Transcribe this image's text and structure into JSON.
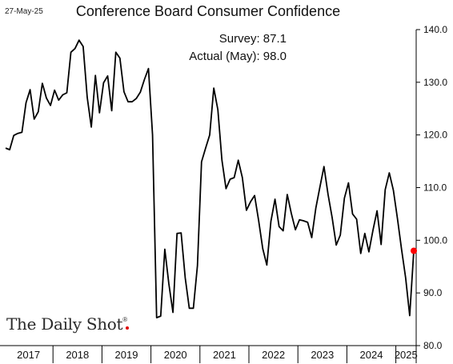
{
  "header": {
    "date": "27-May-25",
    "title": "Conference Board Consumer Confidence"
  },
  "annotations": {
    "survey": "Survey:  87.1",
    "actual": "Actual (May):  98.0"
  },
  "brand": {
    "name": "The Daily Shot",
    "mark": "®"
  },
  "colors": {
    "line": "#000000",
    "highlight": "#ff0000",
    "axis": "#000000"
  },
  "chart_data": {
    "type": "line",
    "title": "Conference Board Consumer Confidence",
    "xlabel": "",
    "ylabel": "",
    "ylim": [
      80,
      140
    ],
    "yticks": [
      80,
      90,
      100,
      110,
      120,
      130,
      140
    ],
    "ytick_labels": [
      "80.0",
      "90.0",
      "100.0",
      "110.0",
      "120.0",
      "130.0",
      "140.0"
    ],
    "y_axis_side": "right",
    "grid": false,
    "xlim": [
      "2017-01",
      "2025-05"
    ],
    "x_categories": [
      "2017",
      "2018",
      "2019",
      "2020",
      "2021",
      "2022",
      "2023",
      "2024",
      "2025"
    ],
    "series": [
      {
        "x": [
          "2017-01",
          "2017-02",
          "2017-03",
          "2017-04",
          "2017-05",
          "2017-06",
          "2017-07",
          "2017-08",
          "2017-09",
          "2017-10",
          "2017-11",
          "2017-12",
          "2018-01",
          "2018-02",
          "2018-03",
          "2018-04",
          "2018-05",
          "2018-06",
          "2018-07",
          "2018-08",
          "2018-09",
          "2018-10",
          "2018-11",
          "2018-12",
          "2019-01",
          "2019-02",
          "2019-03",
          "2019-04",
          "2019-05",
          "2019-06",
          "2019-07",
          "2019-08",
          "2019-09",
          "2019-10",
          "2019-11",
          "2019-12",
          "2020-01",
          "2020-02",
          "2020-03",
          "2020-04",
          "2020-05",
          "2020-06",
          "2020-07",
          "2020-08",
          "2020-09",
          "2020-10",
          "2020-11",
          "2020-12",
          "2021-01",
          "2021-02",
          "2021-03",
          "2021-04",
          "2021-05",
          "2021-06",
          "2021-07",
          "2021-08",
          "2021-09",
          "2021-10",
          "2021-11",
          "2021-12",
          "2022-01",
          "2022-02",
          "2022-03",
          "2022-04",
          "2022-05",
          "2022-06",
          "2022-07",
          "2022-08",
          "2022-09",
          "2022-10",
          "2022-11",
          "2022-12",
          "2023-01",
          "2023-02",
          "2023-03",
          "2023-04",
          "2023-05",
          "2023-06",
          "2023-07",
          "2023-08",
          "2023-09",
          "2023-10",
          "2023-11",
          "2023-12",
          "2024-01",
          "2024-02",
          "2024-03",
          "2024-04",
          "2024-05",
          "2024-06",
          "2024-07",
          "2024-08",
          "2024-09",
          "2024-10",
          "2024-11",
          "2024-12",
          "2025-01",
          "2025-02",
          "2025-03",
          "2025-04",
          "2025-05"
        ],
        "values": [
          117.5,
          117.2,
          119.9,
          120.3,
          120.5,
          126.1,
          128.6,
          123.0,
          124.4,
          129.8,
          127.0,
          125.6,
          128.5,
          126.6,
          127.6,
          128.0,
          135.7,
          136.4,
          138.0,
          136.8,
          127.1,
          121.5,
          131.3,
          124.2,
          129.9,
          131.2,
          124.6,
          135.7,
          134.6,
          128.2,
          126.3,
          126.3,
          126.9,
          128.1,
          130.5,
          132.6,
          120.0,
          85.3,
          85.6,
          98.3,
          91.7,
          86.3,
          101.3,
          101.4,
          92.9,
          87.1,
          87.1,
          95.2,
          114.9,
          117.5,
          120.0,
          128.9,
          124.8,
          115.2,
          109.8,
          111.6,
          111.9,
          115.2,
          111.9,
          105.7,
          107.3,
          108.5,
          103.7,
          98.4,
          95.3,
          103.6,
          107.8,
          102.6,
          101.8,
          108.7,
          105.1,
          102.0,
          103.9,
          103.7,
          103.4,
          100.5,
          106.1,
          110.1,
          114.0,
          108.7,
          104.3,
          99.1,
          101.0,
          108.0,
          110.9,
          105.0,
          104.0,
          97.5,
          101.3,
          97.8,
          101.9,
          105.6,
          99.2,
          109.6,
          112.8,
          109.5,
          104.1,
          98.3,
          92.9,
          85.7,
          98.0
        ],
        "highlight_last": true
      }
    ]
  }
}
